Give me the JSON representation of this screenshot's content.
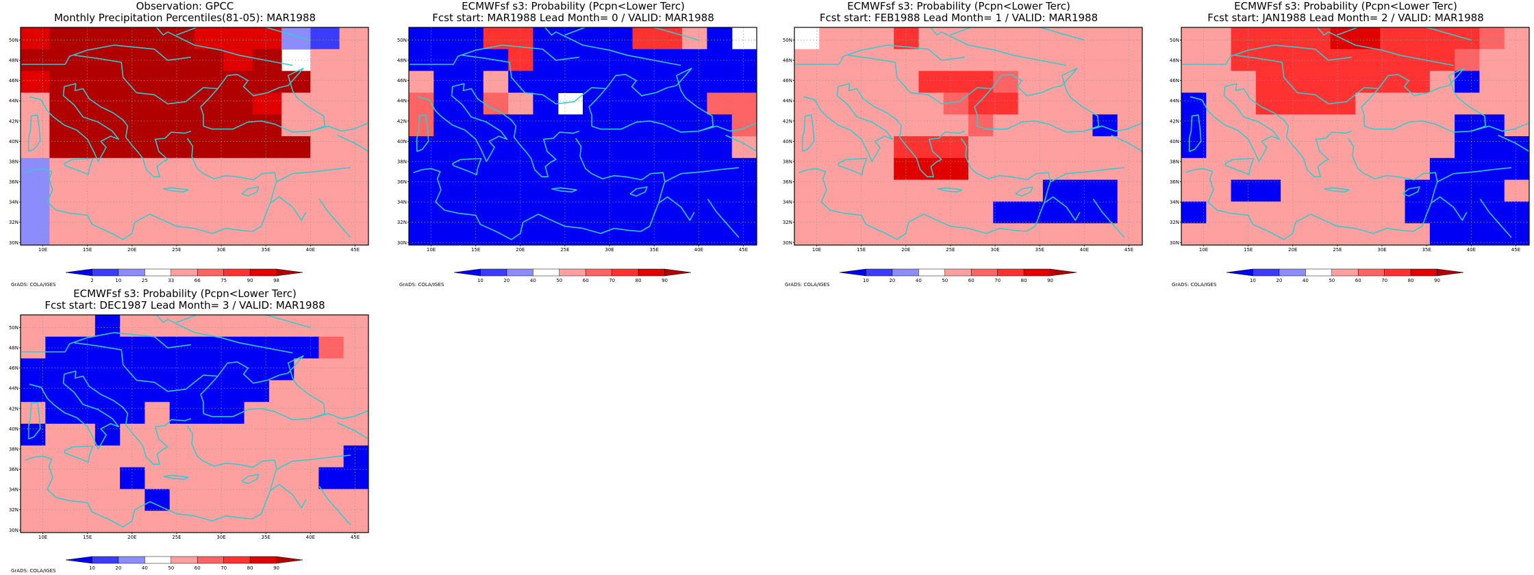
{
  "credit": "GrADS: COLA/IGES",
  "axes": {
    "lon_ticks": [
      10,
      15,
      20,
      25,
      30,
      35,
      40,
      45
    ],
    "lat_ticks": [
      30,
      32,
      34,
      36,
      38,
      40,
      42,
      44,
      46,
      48,
      50
    ],
    "lon_labels": [
      "10E",
      "15E",
      "20E",
      "25E",
      "30E",
      "35E",
      "40E",
      "45E"
    ],
    "lat_labels": [
      "30N",
      "32N",
      "34N",
      "36N",
      "38N",
      "40N",
      "42N",
      "44N",
      "46N",
      "48N",
      "50N"
    ],
    "xlim": [
      7.5,
      46.5
    ],
    "ylim": [
      29.75,
      51.25
    ],
    "grid": "dotted"
  },
  "colors": {
    "coast": "#33cccc",
    "levels": [
      "#0000f5",
      "#3c3cff",
      "#8c8cff",
      "#ffffff",
      "#ffa0a0",
      "#ff6464",
      "#ff3232",
      "#e00000",
      "#b00000"
    ]
  },
  "colorbars": {
    "percentile": {
      "labels": [
        "2",
        "10",
        "25",
        "33",
        "66",
        "75",
        "90",
        "98"
      ]
    },
    "probability": {
      "labels": [
        "10",
        "20",
        "40",
        "50",
        "60",
        "70",
        "80",
        "90"
      ]
    }
  },
  "panels": [
    {
      "id": "obs",
      "title_line1": "Observation: GPCC",
      "title_line2": "Monthly Precipitation Percentiles(81-05): MAR1988",
      "colorbar": "percentile",
      "cells": [
        "788888777214",
        "888888878344",
        "788888888844",
        "488888887444",
        "488888888444",
        "488888888844",
        "244444444444",
        "244444444444",
        "244444444444",
        "244444444444"
      ]
    },
    {
      "id": "lead0",
      "title_line1": "ECMWFsf s3: Probability (Pcpn<Lower Terc)",
      "title_line2": "Fcst start: MAR1988   Lead Month= 0 / VALID: MAR1988",
      "colorbar": "probability",
      "cells": [
        "00066000066403",
        "00006000000000",
        "40040000000000",
        "50054030000055",
        "50000000000005",
        "00000000000004",
        "00000000000000",
        "00000000000000",
        "00000000000000",
        "00000000000000"
      ]
    },
    {
      "id": "lead1",
      "title_line1": "ECMWFsf s3: Probability (Pcpn<Lower Terc)",
      "title_line2": "Fcst start: FEB1988   Lead Month= 1 / VALID: MAR1988",
      "colorbar": "probability",
      "cells": [
        "34446444444444",
        "44444444444444",
        "44444666544444",
        "44444456644444",
        "44444445444404",
        "44446664444444",
        "44447774444444",
        "44444444440004",
        "44444444000004",
        "44444444444444"
      ]
    },
    {
      "id": "lead2",
      "title_line1": "ECMWFsf s3: Probability (Pcpn<Lower Terc)",
      "title_line2": "Fcst start: JAN1988   Lead Month= 2 / VALID: MAR1988",
      "colorbar": "probability",
      "cells": [
        "44666677666654",
        "44666666666544",
        "44466666664044",
        "04466664444444",
        "04444444444004",
        "04444444444000",
        "44444444440000",
        "44004444400004",
        "04444444400000",
        "44444444440000"
      ]
    },
    {
      "id": "lead3",
      "title_line1": "ECMWFsf s3: Probability (Pcpn<Lower Terc)",
      "title_line2": "Fcst start: DEC1987   Lead Month= 3 / VALID: MAR1988",
      "colorbar": "probability",
      "cells": [
        "44404444444444",
        "40000000000054",
        "00000000000444",
        "00000000004444",
        "40000400044444",
        "04404444444444",
        "44444444444440",
        "44440444444400",
        "44444044444444",
        "44444444444444"
      ]
    }
  ]
}
